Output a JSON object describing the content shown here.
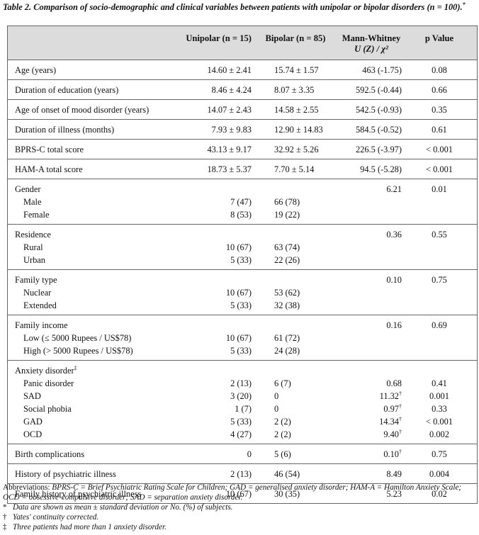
{
  "caption": {
    "title": "Table 2. Comparison of socio-demographic and clinical variables between patients with unipolar or bipolar disorders",
    "n_line": "(n = 100).",
    "n_mark": "*"
  },
  "headers": {
    "col2": "Unipolar (n = 15)",
    "col3": "Bipolar (n = 85)",
    "col4_line1": "Mann-Whitney",
    "col4_line2": "U (Z) / χ²",
    "col5": "p Value"
  },
  "groups": [
    {
      "rows": [
        {
          "label": "Age (years)",
          "unipolar": "14.60 ± 2.41",
          "bipolar": "15.74 ± 1.57",
          "stat": "463 (-1.75)",
          "stat_mark": "",
          "p": "0.08"
        }
      ]
    },
    {
      "rows": [
        {
          "label": "Duration of education (years)",
          "unipolar": "8.46 ± 4.24",
          "bipolar": "8.07 ± 3.35",
          "stat": "592.5 (-0.44)",
          "stat_mark": "",
          "p": "0.66"
        }
      ]
    },
    {
      "rows": [
        {
          "label": "Age of onset of mood disorder (years)",
          "unipolar": "14.07 ± 2.43",
          "bipolar": "14.58 ± 2.55",
          "stat": "542.5 (-0.93)",
          "stat_mark": "",
          "p": "0.35"
        }
      ]
    },
    {
      "rows": [
        {
          "label": "Duration of illness (months)",
          "unipolar": "7.93 ± 9.83",
          "bipolar": "12.90 ± 14.83",
          "stat": "584.5 (-0.52)",
          "stat_mark": "",
          "p": "0.61"
        }
      ]
    },
    {
      "rows": [
        {
          "label": "BPRS-C total score",
          "unipolar": "43.13 ± 9.17",
          "bipolar": "32.92 ± 5.26",
          "stat": "226.5 (-3.97)",
          "stat_mark": "",
          "p": "< 0.001"
        }
      ]
    },
    {
      "rows": [
        {
          "label": "HAM-A total score",
          "unipolar": "18.73 ± 5.37",
          "bipolar": "7.70 ± 5.14",
          "stat": "94.5 (-5.28)",
          "stat_mark": "",
          "p": "< 0.001"
        }
      ]
    },
    {
      "rows": [
        {
          "label": "Gender",
          "unipolar": "",
          "bipolar": "",
          "stat": "6.21",
          "stat_mark": "",
          "p": "0.01"
        },
        {
          "label": "Male",
          "sub": true,
          "unipolar": "7 (47)",
          "bipolar": "66 (78)",
          "stat": "",
          "stat_mark": "",
          "p": ""
        },
        {
          "label": "Female",
          "sub": true,
          "unipolar": "8 (53)",
          "bipolar": "19 (22)",
          "stat": "",
          "stat_mark": "",
          "p": ""
        }
      ]
    },
    {
      "rows": [
        {
          "label": "Residence",
          "unipolar": "",
          "bipolar": "",
          "stat": "0.36",
          "stat_mark": "",
          "p": "0.55"
        },
        {
          "label": "Rural",
          "sub": true,
          "unipolar": "10 (67)",
          "bipolar": "63 (74)",
          "stat": "",
          "stat_mark": "",
          "p": ""
        },
        {
          "label": "Urban",
          "sub": true,
          "unipolar": "5 (33)",
          "bipolar": "22 (26)",
          "stat": "",
          "stat_mark": "",
          "p": ""
        }
      ]
    },
    {
      "rows": [
        {
          "label": "Family type",
          "unipolar": "",
          "bipolar": "",
          "stat": "0.10",
          "stat_mark": "",
          "p": "0.75"
        },
        {
          "label": "Nuclear",
          "sub": true,
          "unipolar": "10 (67)",
          "bipolar": "53 (62)",
          "stat": "",
          "stat_mark": "",
          "p": ""
        },
        {
          "label": "Extended",
          "sub": true,
          "unipolar": "5 (33)",
          "bipolar": "32 (38)",
          "stat": "",
          "stat_mark": "",
          "p": ""
        }
      ]
    },
    {
      "rows": [
        {
          "label": "Family income",
          "unipolar": "",
          "bipolar": "",
          "stat": "0.16",
          "stat_mark": "",
          "p": "0.69"
        },
        {
          "label": "Low (≤ 5000 Rupees / US$78)",
          "sub": true,
          "unipolar": "10 (67)",
          "bipolar": "61 (72)",
          "stat": "",
          "stat_mark": "",
          "p": ""
        },
        {
          "label": "High (> 5000 Rupees / US$78)",
          "sub": true,
          "unipolar": "5 (33)",
          "bipolar": "24 (28)",
          "stat": "",
          "stat_mark": "",
          "p": ""
        }
      ]
    },
    {
      "rows": [
        {
          "label": "Anxiety disorder",
          "label_mark": "‡",
          "unipolar": "",
          "bipolar": "",
          "stat": "",
          "stat_mark": "",
          "p": ""
        },
        {
          "label": "Panic disorder",
          "sub": true,
          "unipolar": "2 (13)",
          "bipolar": "6 (7)",
          "stat": "0.68",
          "stat_mark": "",
          "p": "0.41"
        },
        {
          "label": "SAD",
          "sub": true,
          "unipolar": "3 (20)",
          "bipolar": "0",
          "stat": "11.32",
          "stat_mark": "†",
          "p": "0.001"
        },
        {
          "label": "Social phobia",
          "sub": true,
          "unipolar": "1 (7)",
          "bipolar": "0",
          "stat": "0.97",
          "stat_mark": "†",
          "p": "0.33"
        },
        {
          "label": "GAD",
          "sub": true,
          "unipolar": "5 (33)",
          "bipolar": "2 (2)",
          "stat": "14.34",
          "stat_mark": "†",
          "p": "< 0.001"
        },
        {
          "label": "OCD",
          "sub": true,
          "unipolar": "4 (27)",
          "bipolar": "2 (2)",
          "stat": "9.40",
          "stat_mark": "†",
          "p": "0.002"
        }
      ]
    },
    {
      "rows": [
        {
          "label": "Birth complications",
          "unipolar": "0",
          "bipolar": "5 (6)",
          "stat": "0.10",
          "stat_mark": "†",
          "p": "0.75"
        }
      ]
    },
    {
      "rows": [
        {
          "label": "History of psychiatric illness",
          "unipolar": "2 (13)",
          "bipolar": "46 (54)",
          "stat": "8.49",
          "stat_mark": "",
          "p": "0.004"
        }
      ]
    },
    {
      "rows": [
        {
          "label": "Family history of psychiatric illness",
          "unipolar": "10 (67)",
          "bipolar": "30 (35)",
          "stat": "5.23",
          "stat_mark": "",
          "p": "0.02"
        }
      ]
    }
  ],
  "footnotes": {
    "abbrev_lead": "Abbreviations: ",
    "abbrev_text": "BPRS-C = Brief Psychiatric Rating Scale for Children; GAD = generalised anxiety disorder; HAM-A = Hamilton Anxiety Scale; OCD = obsessive-compulsive disorder; SAD = separation anxiety disorder.",
    "notes": [
      {
        "mark": "*",
        "text": "Data are shown as mean ± standard deviation or No. (%) of subjects."
      },
      {
        "mark": "†",
        "text": "Yates' continuity corrected."
      },
      {
        "mark": "‡",
        "text": "Three patients had more than 1 anxiety disorder."
      }
    ]
  }
}
